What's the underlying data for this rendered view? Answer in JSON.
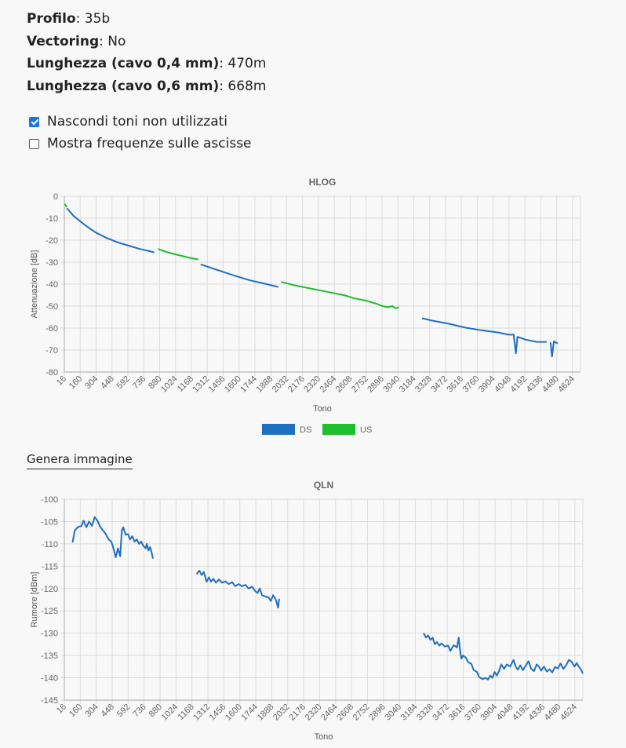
{
  "info": [
    {
      "label": "Profilo",
      "value": "35b"
    },
    {
      "label": "Vectoring",
      "value": "No"
    },
    {
      "label": "Lunghezza (cavo 0,4 mm)",
      "value": "470m"
    },
    {
      "label": "Lunghezza (cavo 0,6 mm)",
      "value": "668m"
    }
  ],
  "options": {
    "hide_unused": {
      "label": "Nascondi toni non utilizzati",
      "checked": true
    },
    "show_freq": {
      "label": "Mostra frequenze sulle ascisse",
      "checked": false
    }
  },
  "generate_label": "Genera immagine",
  "colors": {
    "ds": "#1f6fbf",
    "us": "#1fbe2e",
    "grid": "#dcdcdc"
  },
  "chart_data": [
    {
      "type": "line",
      "title": "HLOG",
      "xlabel": "Tono",
      "ylabel": "Attenuazione [dB]",
      "xlim": [
        16,
        4696
      ],
      "x_ticks": [
        16,
        160,
        304,
        448,
        592,
        736,
        880,
        1024,
        1168,
        1312,
        1456,
        1600,
        1744,
        1888,
        2032,
        2176,
        2320,
        2464,
        2608,
        2752,
        2896,
        3040,
        3184,
        3328,
        3472,
        3616,
        3760,
        3904,
        4048,
        4192,
        4336,
        4480,
        4624
      ],
      "ylim": [
        -80,
        0
      ],
      "y_ticks": [
        0,
        -10,
        -20,
        -30,
        -40,
        -50,
        -60,
        -70,
        -80
      ],
      "grid": true,
      "legend_position": "bottom",
      "series": [
        {
          "name": "DS",
          "color": "#1f6fbf",
          "segments": [
            [
              [
                40,
                -5.5
              ],
              [
                100,
                -9
              ],
              [
                200,
                -13
              ],
              [
                300,
                -16.5
              ],
              [
                400,
                -19
              ],
              [
                500,
                -21
              ],
              [
                600,
                -22.5
              ],
              [
                700,
                -24
              ],
              [
                831,
                -25.5
              ]
            ],
            [
              [
                1252,
                -31
              ],
              [
                1400,
                -33.5
              ],
              [
                1550,
                -36
              ],
              [
                1700,
                -38.3
              ],
              [
                1850,
                -40
              ],
              [
                1955,
                -41.3
              ]
            ],
            [
              [
                3259,
                -55.5
              ],
              [
                3350,
                -56.6
              ],
              [
                3500,
                -58
              ],
              [
                3650,
                -59.8
              ],
              [
                3800,
                -61
              ],
              [
                3950,
                -62
              ],
              [
                4040,
                -63
              ],
              [
                4090,
                -63
              ],
              [
                4110,
                -71.5
              ],
              [
                4125,
                -64
              ],
              [
                4200,
                -65.3
              ],
              [
                4300,
                -66.3
              ],
              [
                4390,
                -66.3
              ]
            ],
            [
              [
                4424,
                -66.5
              ],
              [
                4438,
                -73
              ],
              [
                4455,
                -66
              ],
              [
                4470,
                -66.5
              ],
              [
                4490,
                -67
              ]
            ]
          ]
        },
        {
          "name": "US",
          "color": "#1fbe2e",
          "segments": [
            [
              [
                21,
                -3.5
              ],
              [
                38,
                -5
              ]
            ],
            [
              [
                866,
                -24
              ],
              [
                950,
                -25.5
              ],
              [
                1050,
                -26.8
              ],
              [
                1150,
                -28
              ],
              [
                1230,
                -28.8
              ]
            ],
            [
              [
                1982,
                -39
              ],
              [
                2100,
                -40.5
              ],
              [
                2250,
                -42
              ],
              [
                2400,
                -43.5
              ],
              [
                2550,
                -45
              ],
              [
                2650,
                -46.5
              ],
              [
                2750,
                -47.5
              ],
              [
                2850,
                -49
              ],
              [
                2900,
                -50
              ],
              [
                2950,
                -50.5
              ],
              [
                2990,
                -50
              ],
              [
                3020,
                -51
              ],
              [
                3050,
                -50.5
              ]
            ]
          ]
        }
      ]
    },
    {
      "type": "line",
      "title": "QLN",
      "xlabel": "Tono",
      "ylabel": "Rumore [dBm]",
      "xlim": [
        16,
        4696
      ],
      "x_ticks": [
        16,
        160,
        304,
        448,
        592,
        736,
        880,
        1024,
        1168,
        1312,
        1456,
        1600,
        1744,
        1888,
        2032,
        2176,
        2320,
        2464,
        2608,
        2752,
        2896,
        3040,
        3184,
        3328,
        3472,
        3616,
        3760,
        3904,
        4048,
        4192,
        4336,
        4480,
        4624
      ],
      "ylim": [
        -145,
        -100
      ],
      "y_ticks": [
        -100,
        -105,
        -110,
        -115,
        -120,
        -125,
        -130,
        -135,
        -140,
        -145
      ],
      "grid": true,
      "series": [
        {
          "name": "DS",
          "color": "#1f6fbf",
          "segments": [
            [
              [
                90,
                -109.7
              ],
              [
                110,
                -107
              ],
              [
                140,
                -106.2
              ],
              [
                170,
                -106
              ],
              [
                190,
                -104.8
              ],
              [
                215,
                -106.3
              ],
              [
                240,
                -105
              ],
              [
                265,
                -106
              ],
              [
                290,
                -104
              ],
              [
                315,
                -104.8
              ],
              [
                340,
                -106.2
              ],
              [
                365,
                -107
              ],
              [
                390,
                -107.8
              ],
              [
                415,
                -109
              ],
              [
                440,
                -109.5
              ],
              [
                460,
                -111
              ],
              [
                480,
                -113
              ],
              [
                500,
                -111
              ],
              [
                520,
                -112.8
              ],
              [
                535,
                -107
              ],
              [
                548,
                -106.3
              ],
              [
                570,
                -108
              ],
              [
                590,
                -107.8
              ],
              [
                610,
                -109
              ],
              [
                630,
                -108.3
              ],
              [
                650,
                -109.5
              ],
              [
                670,
                -109
              ],
              [
                690,
                -110
              ],
              [
                710,
                -109.5
              ],
              [
                730,
                -110.5
              ],
              [
                750,
                -111
              ],
              [
                760,
                -110
              ],
              [
                775,
                -111.5
              ],
              [
                790,
                -110.7
              ],
              [
                805,
                -112
              ],
              [
                815,
                -113.3
              ]
            ],
            [
              [
                1210,
                -116.8
              ],
              [
                1235,
                -116
              ],
              [
                1255,
                -117
              ],
              [
                1275,
                -116.3
              ],
              [
                1300,
                -118.5
              ],
              [
                1320,
                -117.5
              ],
              [
                1340,
                -118.5
              ],
              [
                1360,
                -117.8
              ],
              [
                1385,
                -118.7
              ],
              [
                1410,
                -118
              ],
              [
                1440,
                -118.7
              ],
              [
                1470,
                -118.4
              ],
              [
                1500,
                -119
              ],
              [
                1530,
                -118.6
              ],
              [
                1560,
                -119.5
              ],
              [
                1590,
                -119
              ],
              [
                1620,
                -119.5
              ],
              [
                1650,
                -119.2
              ],
              [
                1680,
                -120
              ],
              [
                1710,
                -119.6
              ],
              [
                1740,
                -120.6
              ],
              [
                1760,
                -121
              ],
              [
                1780,
                -120
              ],
              [
                1800,
                -121.5
              ],
              [
                1830,
                -121.8
              ],
              [
                1860,
                -122
              ],
              [
                1880,
                -122.8
              ],
              [
                1900,
                -121.5
              ],
              [
                1925,
                -122.5
              ],
              [
                1945,
                -124.3
              ],
              [
                1955,
                -122.3
              ]
            ],
            [
              [
                3259,
                -130
              ],
              [
                3280,
                -131
              ],
              [
                3300,
                -130.5
              ],
              [
                3320,
                -131.5
              ],
              [
                3340,
                -131
              ],
              [
                3360,
                -132.5
              ],
              [
                3380,
                -132
              ],
              [
                3400,
                -132.8
              ],
              [
                3420,
                -132.3
              ],
              [
                3450,
                -133
              ],
              [
                3480,
                -132.8
              ],
              [
                3500,
                -134
              ],
              [
                3530,
                -132.7
              ],
              [
                3560,
                -133.2
              ],
              [
                3575,
                -131
              ],
              [
                3590,
                -134.3
              ],
              [
                3600,
                -135.7
              ],
              [
                3615,
                -135
              ],
              [
                3640,
                -135.5
              ],
              [
                3660,
                -136.5
              ],
              [
                3690,
                -136.9
              ],
              [
                3710,
                -138.2
              ],
              [
                3740,
                -138.7
              ],
              [
                3760,
                -139.8
              ],
              [
                3790,
                -140.3
              ],
              [
                3820,
                -140
              ],
              [
                3840,
                -140.4
              ],
              [
                3860,
                -139.5
              ],
              [
                3880,
                -140
              ],
              [
                3900,
                -138.7
              ],
              [
                3920,
                -139.5
              ],
              [
                3940,
                -138.5
              ],
              [
                3960,
                -137
              ],
              [
                3985,
                -138
              ],
              [
                4010,
                -137
              ],
              [
                4040,
                -137.5
              ],
              [
                4070,
                -136
              ],
              [
                4090,
                -137.5
              ],
              [
                4110,
                -138.2
              ],
              [
                4130,
                -137.2
              ],
              [
                4155,
                -138.3
              ],
              [
                4180,
                -137.3
              ],
              [
                4205,
                -136.3
              ],
              [
                4230,
                -138
              ],
              [
                4255,
                -138.5
              ],
              [
                4280,
                -137
              ],
              [
                4300,
                -137.5
              ],
              [
                4320,
                -138.4
              ],
              [
                4345,
                -137.5
              ],
              [
                4370,
                -138.6
              ],
              [
                4395,
                -138.1
              ],
              [
                4420,
                -138.8
              ],
              [
                4445,
                -137.6
              ],
              [
                4470,
                -137.9
              ],
              [
                4495,
                -136.8
              ],
              [
                4520,
                -138
              ],
              [
                4545,
                -137.2
              ],
              [
                4570,
                -136
              ],
              [
                4595,
                -136.4
              ],
              [
                4620,
                -137.5
              ],
              [
                4640,
                -136.7
              ],
              [
                4660,
                -137.5
              ],
              [
                4680,
                -138.2
              ],
              [
                4696,
                -139
              ]
            ]
          ]
        }
      ]
    }
  ]
}
